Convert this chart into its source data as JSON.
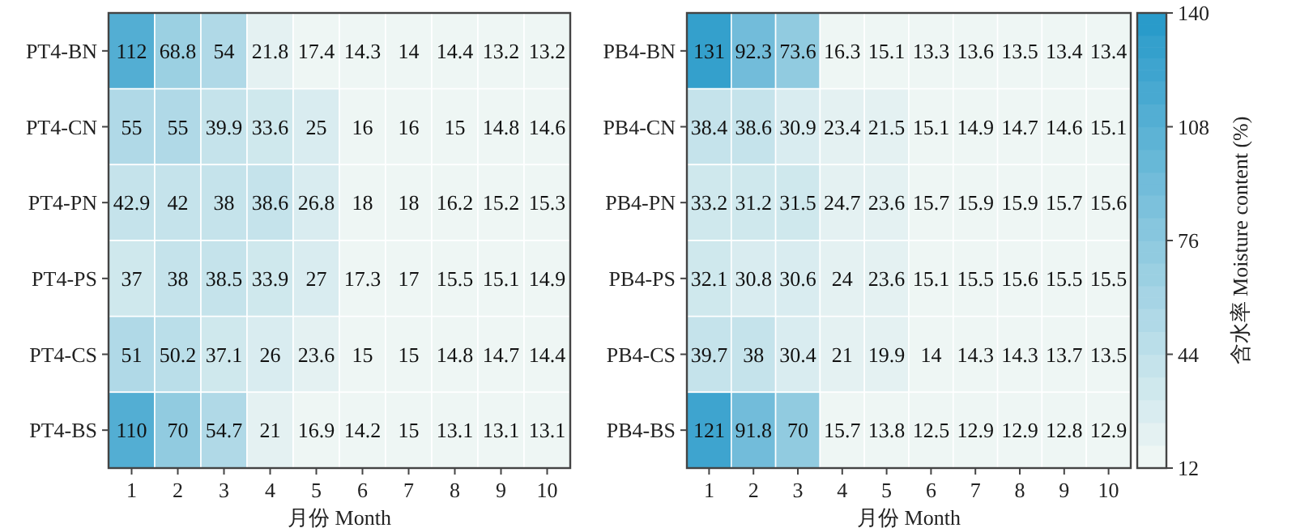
{
  "chart_data": [
    {
      "type": "heatmap",
      "xlabel": "月份 Month",
      "categories": [
        "1",
        "2",
        "3",
        "4",
        "5",
        "6",
        "7",
        "8",
        "9",
        "10"
      ],
      "y_categories": [
        "PT4-BN",
        "PT4-CN",
        "PT4-PN",
        "PT4-PS",
        "PT4-CS",
        "PT4-BS"
      ],
      "cells": [
        [
          112,
          68.8,
          54,
          21.8,
          17.4,
          14.3,
          14,
          14.4,
          13.2,
          13.2
        ],
        [
          55,
          55,
          39.9,
          33.6,
          25,
          16,
          16,
          15,
          14.8,
          14.6
        ],
        [
          42.9,
          42,
          38,
          38.6,
          26.8,
          18,
          18,
          16.2,
          15.2,
          15.3
        ],
        [
          37,
          38,
          38.5,
          33.9,
          27,
          17.3,
          17,
          15.5,
          15.1,
          14.9
        ],
        [
          51,
          50.2,
          37.1,
          26,
          23.6,
          15,
          15,
          14.8,
          14.7,
          14.4
        ],
        [
          110,
          70,
          54.7,
          21,
          16.9,
          14.2,
          15,
          13.1,
          13.1,
          13.1
        ]
      ],
      "data_labels": true
    },
    {
      "type": "heatmap",
      "xlabel": "月份 Month",
      "clabel": "含水率 Moisture content (%)",
      "categories": [
        "1",
        "2",
        "3",
        "4",
        "5",
        "6",
        "7",
        "8",
        "9",
        "10"
      ],
      "y_categories": [
        "PB4-BN",
        "PB4-CN",
        "PB4-PN",
        "PB4-PS",
        "PB4-CS",
        "PB4-BS"
      ],
      "cells": [
        [
          131,
          92.3,
          73.6,
          16.3,
          15.1,
          13.3,
          13.6,
          13.5,
          13.4,
          13.4
        ],
        [
          38.4,
          38.6,
          30.9,
          23.4,
          21.5,
          15.1,
          14.9,
          14.7,
          14.6,
          15.1
        ],
        [
          33.2,
          31.2,
          31.5,
          24.7,
          23.6,
          15.7,
          15.9,
          15.9,
          15.7,
          15.6
        ],
        [
          32.1,
          30.8,
          30.6,
          24,
          23.6,
          15.1,
          15.5,
          15.6,
          15.5,
          15.5
        ],
        [
          39.7,
          38,
          30.4,
          21,
          19.9,
          14,
          14.3,
          14.3,
          13.7,
          13.5
        ],
        [
          121,
          91.8,
          70,
          15.7,
          13.8,
          12.5,
          12.9,
          12.9,
          12.8,
          12.9
        ]
      ],
      "clim": [
        12,
        140
      ],
      "cticks": [
        12,
        44,
        76,
        108,
        140
      ],
      "data_labels": true
    }
  ]
}
